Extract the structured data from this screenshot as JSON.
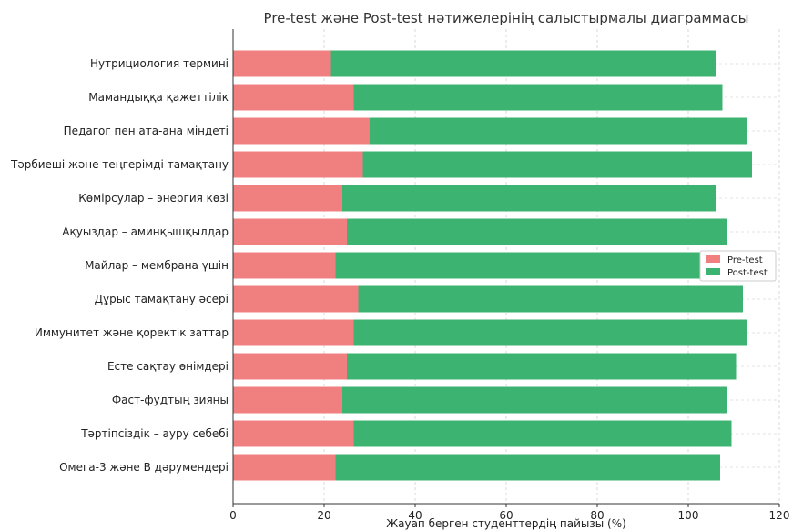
{
  "chart_data": {
    "type": "bar",
    "orientation": "horizontal",
    "stacked": true,
    "title": "Pre-test және Post-test нәтижелерінің салыстырмалы диаграммасы",
    "xlabel": "Жауап берген студенттердің пайызы (%)",
    "ylabel": "",
    "xlim": [
      0,
      120
    ],
    "xticks": [
      0,
      20,
      40,
      60,
      80,
      100,
      120
    ],
    "grid": true,
    "legend_position": "center-right",
    "categories": [
      "Нутрициология термині",
      "Мамандыққа қажеттілік",
      "Педагог пен ата-ана міндеті",
      "Тәрбиеші және теңгерімді тамақтану",
      "Көмірсулар – энергия көзі",
      "Ақуыздар – аминқышқылдар",
      "Майлар – мембрана үшін",
      "Дұрыс тамақтану әсері",
      "Иммунитет және қоректік заттар",
      "Есте сақтау өнімдері",
      "Фаст-фудтың зияны",
      "Тәртіпсіздік – ауру себебі",
      "Омега-3 және В дәрумендері"
    ],
    "series": [
      {
        "name": "Pre-test",
        "color": "#f08080",
        "values": [
          21.5,
          26.5,
          30,
          28.5,
          24,
          25,
          22.5,
          27.5,
          26.5,
          25,
          24,
          26.5,
          22.5
        ]
      },
      {
        "name": "Post-test",
        "color": "#3cb371",
        "values": [
          84.5,
          81,
          83,
          85.5,
          82,
          83.5,
          80,
          84.5,
          86.5,
          85.5,
          84.5,
          83,
          84.5
        ]
      }
    ]
  }
}
